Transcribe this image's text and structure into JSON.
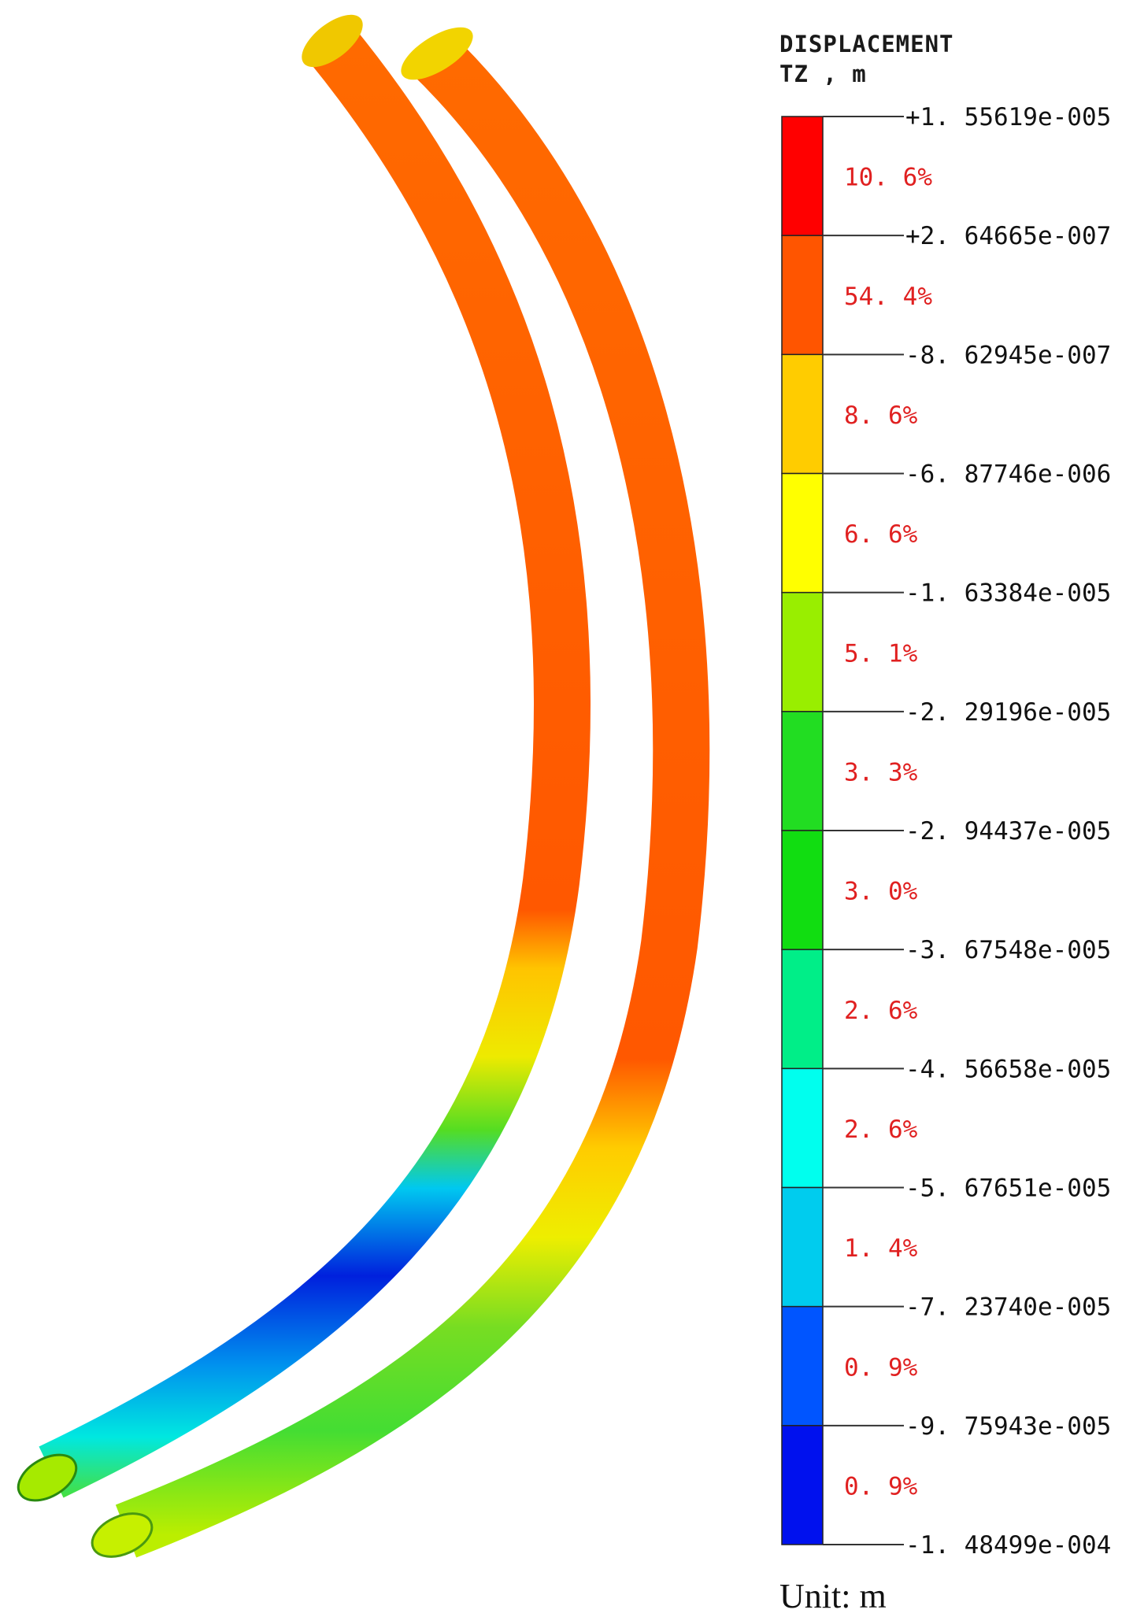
{
  "legend": {
    "title": "DISPLACEMENT",
    "subtitle": "TZ , m",
    "unit_label": "Unit: m",
    "bands": [
      {
        "color": "#ff0000",
        "percent": "10. 6%"
      },
      {
        "color": "#ff5500",
        "percent": "54. 4%"
      },
      {
        "color": "#ffcc00",
        "percent": "8. 6%"
      },
      {
        "color": "#ffff00",
        "percent": "6. 6%"
      },
      {
        "color": "#99ee00",
        "percent": "5. 1%"
      },
      {
        "color": "#22dd22",
        "percent": "3. 3%"
      },
      {
        "color": "#11dd11",
        "percent": "3. 0%"
      },
      {
        "color": "#00ee88",
        "percent": "2. 6%"
      },
      {
        "color": "#00ffee",
        "percent": "2. 6%"
      },
      {
        "color": "#00ccee",
        "percent": "1. 4%"
      },
      {
        "color": "#0055ff",
        "percent": "0. 9%"
      },
      {
        "color": "#0011ee",
        "percent": "0. 9%"
      }
    ],
    "ticks": [
      "+1. 55619e-005",
      "+2. 64665e-007",
      "-8. 62945e-007",
      "-6. 87746e-006",
      "-1. 63384e-005",
      "-2. 29196e-005",
      "-2. 94437e-005",
      "-3. 67548e-005",
      "-4. 56658e-005",
      "-5. 67651e-005",
      "-7. 23740e-005",
      "-9. 75943e-005",
      "-1. 48499e-004"
    ]
  },
  "colors": {
    "tube_dominant": "#ff5a00",
    "tube_yellow": "#ffdd00",
    "tube_green": "#66dd00",
    "tube_cyan": "#00e0f0",
    "tube_blue": "#0022dd"
  }
}
